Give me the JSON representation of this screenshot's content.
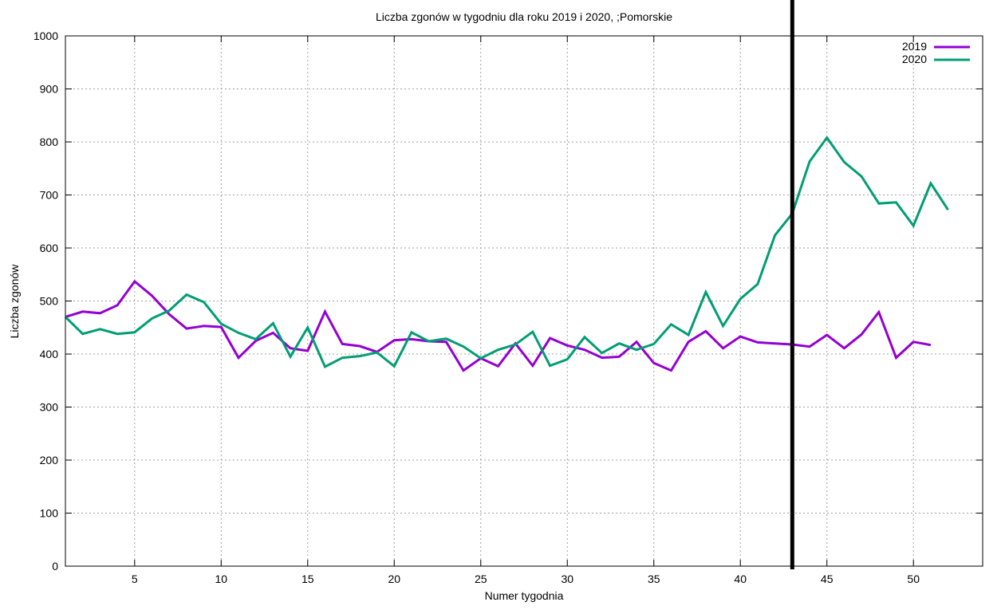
{
  "chart_data": {
    "type": "line",
    "title": "Liczba zgonów w tygodniu dla roku 2019 i 2020, ;Pomorskie",
    "xlabel": "Numer tygodnia",
    "ylabel": "Liczba zgonów",
    "xlim": [
      1,
      54
    ],
    "ylim": [
      0,
      1000
    ],
    "xticks": [
      5,
      10,
      15,
      20,
      25,
      30,
      35,
      40,
      45,
      50
    ],
    "yticks": [
      0,
      100,
      200,
      300,
      400,
      500,
      600,
      700,
      800,
      900,
      1000
    ],
    "grid": true,
    "legend_position": "top-right",
    "vertical_marker_x": 43,
    "vertical_marker_color": "#000000",
    "series": [
      {
        "name": "2019",
        "color": "#9400d3",
        "x": [
          1,
          2,
          3,
          4,
          5,
          6,
          7,
          8,
          9,
          10,
          11,
          12,
          13,
          14,
          15,
          16,
          17,
          18,
          19,
          20,
          21,
          22,
          23,
          24,
          25,
          26,
          27,
          28,
          29,
          30,
          31,
          32,
          33,
          34,
          35,
          36,
          37,
          38,
          39,
          40,
          41,
          42,
          43,
          44,
          45,
          46,
          47,
          48,
          49,
          50,
          51
        ],
        "values": [
          470,
          480,
          477,
          492,
          537,
          510,
          475,
          448,
          453,
          451,
          393,
          425,
          440,
          411,
          406,
          480,
          419,
          415,
          404,
          426,
          428,
          424,
          423,
          369,
          392,
          377,
          420,
          378,
          430,
          416,
          408,
          393,
          395,
          423,
          383,
          369,
          423,
          443,
          411,
          433,
          422,
          420,
          418,
          414,
          436,
          411,
          437,
          479,
          393,
          423,
          417
        ]
      },
      {
        "name": "2020",
        "color": "#009e73",
        "x": [
          1,
          2,
          3,
          4,
          5,
          6,
          7,
          8,
          9,
          10,
          11,
          12,
          13,
          14,
          15,
          16,
          17,
          18,
          19,
          20,
          21,
          22,
          23,
          24,
          25,
          26,
          27,
          28,
          29,
          30,
          31,
          32,
          33,
          34,
          35,
          36,
          37,
          38,
          39,
          40,
          41,
          42,
          43,
          44,
          45,
          46,
          47,
          48,
          49,
          50,
          51,
          52
        ],
        "values": [
          470,
          438,
          447,
          438,
          441,
          467,
          482,
          512,
          498,
          457,
          440,
          428,
          458,
          395,
          450,
          376,
          393,
          396,
          403,
          377,
          441,
          424,
          429,
          414,
          392,
          408,
          418,
          442,
          378,
          390,
          432,
          402,
          420,
          408,
          419,
          456,
          436,
          517,
          453,
          504,
          532,
          624,
          665,
          763,
          808,
          762,
          735,
          684,
          686,
          642,
          722,
          672
        ]
      }
    ]
  }
}
